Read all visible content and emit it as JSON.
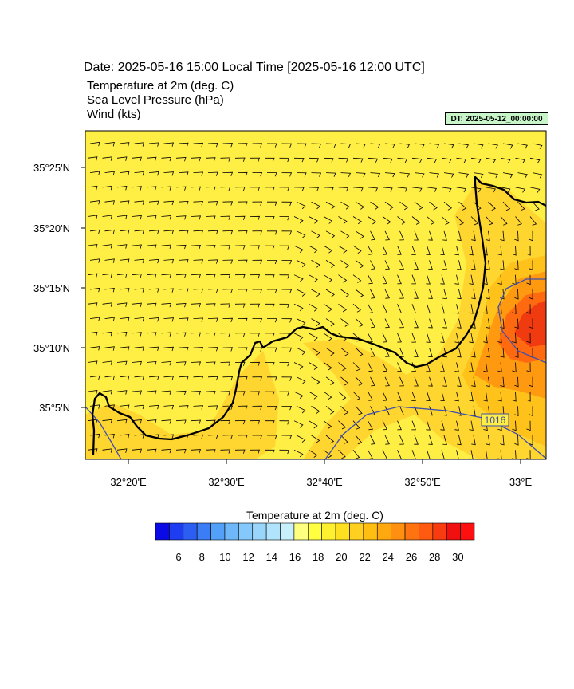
{
  "header": {
    "date_line": "Date: 2025-05-16  15:00 Local Time [2025-05-16  12:00 UTC]",
    "fields": [
      "Temperature at 2m   (deg. C)",
      "Sea Level Pressure   (hPa)",
      "Wind   (kts)"
    ],
    "dt_badge": "DT: 2025-05-12_00:00:00"
  },
  "map": {
    "lat_labels": [
      "35°25'N",
      "35°20'N",
      "35°15'N",
      "35°10'N",
      "35°5'N"
    ],
    "lon_labels": [
      "32°20'E",
      "32°30'E",
      "32°40'E",
      "32°50'E",
      "33°E"
    ],
    "isobar_label": "1016",
    "colors": {
      "background": "#ffee44",
      "warm": "#ffc21a",
      "warmer": "#ff9a10",
      "hot": "#ff6a10",
      "hottest": "#f03a10",
      "coast": "#000000",
      "isobar": "#3e4fb0"
    }
  },
  "colorbar": {
    "title": "Temperature at 2m  (deg. C)",
    "tick_labels": [
      "6",
      "8",
      "10",
      "12",
      "14",
      "16",
      "18",
      "20",
      "22",
      "24",
      "26",
      "28",
      "30"
    ],
    "colors": [
      "#0a0ae6",
      "#1e3cf0",
      "#2c5ef2",
      "#3a7df4",
      "#52a0f8",
      "#6eb8fa",
      "#84c8fc",
      "#9ad6fc",
      "#b0e4fc",
      "#c8f0fc",
      "#ffff80",
      "#ffff40",
      "#fff030",
      "#ffe020",
      "#ffd020",
      "#ffbe10",
      "#ffa810",
      "#ff9010",
      "#ff7410",
      "#ff5a10",
      "#f83c10",
      "#f01010",
      "#ff1010"
    ]
  }
}
